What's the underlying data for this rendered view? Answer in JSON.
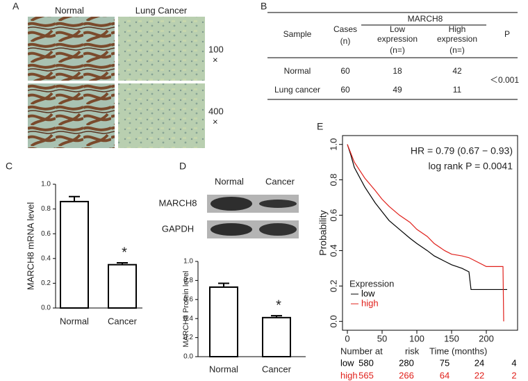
{
  "figure_a": {
    "letter": "A",
    "columns": [
      "Normal",
      "Lung Cancer"
    ],
    "magnifications": [
      {
        "value": "100",
        "sign": "×"
      },
      {
        "value": "400",
        "sign": "×"
      }
    ]
  },
  "table_b": {
    "letter": "B",
    "group_header": "MARCH8",
    "columns": [
      [
        "Sample"
      ],
      [
        "Cases",
        "(n)"
      ],
      [
        "Low",
        "expression",
        "(n=)"
      ],
      [
        "High",
        "expression",
        "(n=)"
      ],
      [
        "P"
      ]
    ],
    "rows": [
      [
        "Normal",
        60,
        18,
        42
      ],
      [
        "Lung cancer",
        60,
        49,
        11
      ]
    ],
    "p_value": "＜0.001"
  },
  "chart_data": [
    {
      "type": "bar",
      "letter": "C",
      "ylabel": "MARCH8 mRNA level",
      "categories": [
        "Normal",
        "Cancer"
      ],
      "values": [
        0.86,
        0.35
      ],
      "errors": [
        0.04,
        0.015
      ],
      "color": "#ffffff",
      "ylim": [
        0,
        1.0
      ],
      "yticks": [
        {
          "value": 0,
          "label": "0.0"
        },
        0.2,
        0.4,
        0.6,
        0.8,
        {
          "value": 1,
          "label": "1.0"
        }
      ],
      "annotation": "*"
    },
    {
      "type": "bar",
      "letter": "D",
      "ylabel": "MARCH8 Protein level",
      "categories": [
        "Normal",
        "Cancer"
      ],
      "values": [
        0.73,
        0.41
      ],
      "errors": [
        0.04,
        0.02
      ],
      "color": "#ffffff",
      "ylim": [
        0,
        1.0
      ],
      "yticks": [
        {
          "value": 0,
          "label": "0.0"
        },
        0.2,
        0.4,
        0.6,
        0.8,
        {
          "value": 1,
          "label": "1.0"
        }
      ],
      "annotation": "*",
      "blot": {
        "lanes": [
          "Normal",
          "Cancer"
        ],
        "bands": [
          "MARCH8",
          "GAPDH"
        ]
      }
    },
    {
      "type": "line",
      "letter": "E",
      "ylabel": "Probability",
      "xlim": [
        -7,
        245
      ],
      "ylim": [
        -0.05,
        1.05
      ],
      "xticks": [
        0,
        50,
        100,
        150,
        200
      ],
      "yticks": [
        {
          "value": 0,
          "label": "0.0"
        },
        0.2,
        0.4,
        0.6,
        0.8,
        {
          "value": 1,
          "label": "1.0"
        }
      ],
      "series": [
        {
          "name": "low",
          "color": "#000000",
          "x": [
            0,
            5,
            10,
            25,
            40,
            50,
            60,
            75,
            90,
            100,
            115,
            125,
            140,
            150,
            165,
            175,
            178,
            200,
            230
          ],
          "values": [
            1.0,
            0.94,
            0.87,
            0.76,
            0.67,
            0.62,
            0.57,
            0.52,
            0.47,
            0.44,
            0.4,
            0.37,
            0.34,
            0.32,
            0.3,
            0.28,
            0.18,
            0.18,
            0.18
          ]
        },
        {
          "name": "high",
          "color": "#e0201b",
          "x": [
            0,
            5,
            10,
            25,
            40,
            50,
            60,
            75,
            90,
            100,
            115,
            125,
            140,
            150,
            165,
            175,
            200,
            224,
            225
          ],
          "values": [
            1.0,
            0.95,
            0.9,
            0.81,
            0.74,
            0.69,
            0.65,
            0.6,
            0.56,
            0.52,
            0.48,
            0.44,
            0.4,
            0.38,
            0.37,
            0.36,
            0.31,
            0.31,
            0.0
          ]
        }
      ],
      "legend_title": "Expression",
      "annotations": [
        "HR = 0.79 (0.67 − 0.93)",
        "log rank P = 0.0041"
      ],
      "risk_table": {
        "header": [
          "Number at",
          "risk",
          "Time (months)"
        ],
        "rows": [
          [
            580,
            280,
            75,
            24,
            4
          ],
          [
            565,
            266,
            64,
            22,
            2
          ]
        ]
      }
    }
  ]
}
